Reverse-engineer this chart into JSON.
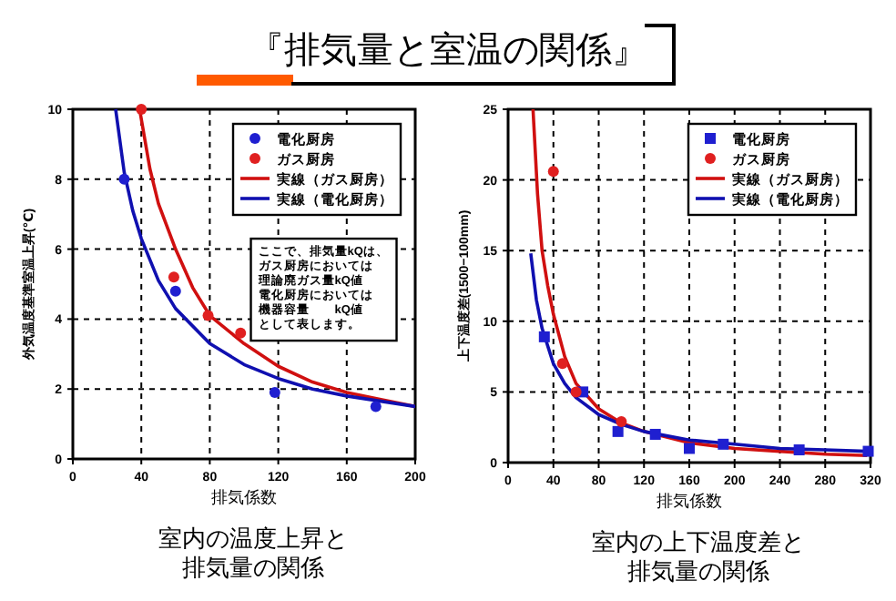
{
  "chart_data": [
    {
      "type": "scatter",
      "title": "『排気量と室温の関係』",
      "xlabel": "排気係数",
      "ylabel": "外気温度基準室温上昇(℃)",
      "xlim": [
        0,
        200
      ],
      "ylim": [
        0,
        10
      ],
      "xticks": [
        0,
        40,
        80,
        120,
        160,
        200
      ],
      "yticks": [
        0,
        2,
        4,
        6,
        8,
        10
      ],
      "grid": true,
      "legend": "top right",
      "annotations": [
        "室内の温度上昇と",
        "排気量の関係",
        "ここで、排気量kQは、",
        "ガス厨房においては",
        "理論廃ガス量kQ値",
        "電化厨房においては",
        "機器容量　　kQ値",
        "として表します。"
      ],
      "series": [
        {
          "name": "電化厨房",
          "marker": "circle",
          "color": "#1f1fd0",
          "x": [
            30,
            60,
            118,
            177
          ],
          "values": [
            8.0,
            4.8,
            1.9,
            1.5
          ]
        },
        {
          "name": "ガス厨房",
          "marker": "circle",
          "color": "#e02020",
          "x": [
            40,
            59,
            79,
            98
          ],
          "values": [
            10.0,
            5.2,
            4.1,
            3.6
          ]
        },
        {
          "name": "実線（ガス厨房）",
          "type": "line",
          "marker": "none",
          "color": "#d01010",
          "x": [
            39,
            45,
            50,
            60,
            70,
            80,
            100,
            120,
            140,
            160,
            180,
            200
          ],
          "values": [
            10.0,
            8.3,
            7.3,
            6.0,
            4.9,
            4.1,
            3.3,
            2.65,
            2.2,
            1.9,
            1.7,
            1.5
          ]
        },
        {
          "name": "実線（電化厨房）",
          "type": "line",
          "marker": "none",
          "color": "#1010b0",
          "x": [
            25,
            30,
            35,
            40,
            50,
            60,
            80,
            100,
            120,
            140,
            160,
            180,
            200
          ],
          "values": [
            10.0,
            8.2,
            7.1,
            6.3,
            5.1,
            4.3,
            3.3,
            2.7,
            2.3,
            2.0,
            1.8,
            1.65,
            1.5
          ]
        }
      ]
    },
    {
      "type": "scatter",
      "xlabel": "排気係数",
      "ylabel": "上下温度差(1500−100mm)",
      "xlim": [
        0,
        320
      ],
      "ylim": [
        0,
        25
      ],
      "xticks": [
        0,
        40,
        80,
        120,
        160,
        200,
        240,
        280,
        320
      ],
      "yticks": [
        0,
        5,
        10,
        15,
        20,
        25
      ],
      "grid": true,
      "legend": "top right",
      "annotations": [
        "室内の上下温度差と",
        "排気量の関係"
      ],
      "series": [
        {
          "name": "電化厨房",
          "marker": "square",
          "color": "#1f1fd0",
          "x": [
            32,
            66,
            97,
            130,
            160,
            190,
            257,
            318
          ],
          "values": [
            8.9,
            5.0,
            2.2,
            2.0,
            1.0,
            1.3,
            0.9,
            0.8
          ]
        },
        {
          "name": "ガス厨房",
          "marker": "circle",
          "color": "#e02020",
          "x": [
            40,
            48,
            60,
            100
          ],
          "values": [
            20.6,
            7.0,
            5.0,
            2.9
          ]
        },
        {
          "name": "実線（ガス厨房）",
          "type": "line",
          "marker": "none",
          "color": "#d01010",
          "x": [
            22,
            26,
            30,
            35,
            40,
            50,
            60,
            80,
            100,
            120,
            160,
            200,
            240,
            280,
            317
          ],
          "values": [
            25,
            19,
            15,
            12.5,
            10.5,
            7.5,
            5.6,
            3.8,
            2.8,
            2.2,
            1.4,
            1.0,
            0.8,
            0.6,
            0.5
          ]
        },
        {
          "name": "実線（電化厨房）",
          "type": "line",
          "marker": "none",
          "color": "#1010b0",
          "x": [
            20,
            25,
            30,
            40,
            50,
            60,
            80,
            100,
            120,
            160,
            200,
            240,
            280,
            317
          ],
          "values": [
            14.8,
            11.5,
            9.5,
            7.0,
            5.6,
            4.6,
            3.4,
            2.7,
            2.2,
            1.6,
            1.3,
            1.0,
            0.9,
            0.8
          ]
        }
      ]
    }
  ]
}
